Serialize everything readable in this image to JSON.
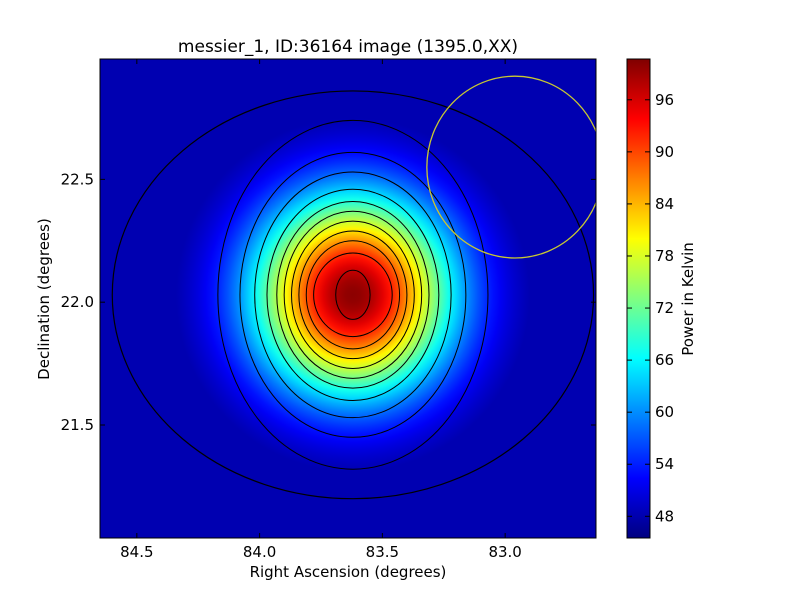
{
  "chart_data": {
    "type": "heatmap",
    "title": "messier_1, ID:36164 image (1395.0,XX)",
    "xlabel": "Right Ascension (degrees)",
    "ylabel": "Declination (degrees)",
    "colorbar_label": "Power in Kelvin",
    "colormap": "jet",
    "x_axis_inverted": true,
    "xlim": [
      84.65,
      82.63
    ],
    "ylim": [
      21.04,
      22.99
    ],
    "x_ticks": [
      {
        "value": 84.5,
        "label": "84.5"
      },
      {
        "value": 84.0,
        "label": "84.0"
      },
      {
        "value": 83.5,
        "label": "83.5"
      },
      {
        "value": 83.0,
        "label": "83.0"
      }
    ],
    "y_ticks": [
      {
        "value": 22.5,
        "label": "22.5"
      },
      {
        "value": 22.0,
        "label": "22.0"
      },
      {
        "value": 21.5,
        "label": "21.5"
      }
    ],
    "colorbar_range": [
      45.5,
      100.7
    ],
    "colorbar_ticks": [
      {
        "value": 48,
        "label": "48"
      },
      {
        "value": 54,
        "label": "54"
      },
      {
        "value": 60,
        "label": "60"
      },
      {
        "value": 66,
        "label": "66"
      },
      {
        "value": 72,
        "label": "72"
      },
      {
        "value": 78,
        "label": "78"
      },
      {
        "value": 84,
        "label": "84"
      },
      {
        "value": 90,
        "label": "90"
      },
      {
        "value": 96,
        "label": "96"
      }
    ],
    "peak": {
      "ra": 83.62,
      "dec": 22.03,
      "value": 100.0
    },
    "background_level": 46.0,
    "contour_semi_axes_deg": [
      {
        "ra": 0.07,
        "dec": 0.1
      },
      {
        "ra": 0.16,
        "dec": 0.17
      },
      {
        "ra": 0.19,
        "dec": 0.22
      },
      {
        "ra": 0.22,
        "dec": 0.26
      },
      {
        "ra": 0.25,
        "dec": 0.3
      },
      {
        "ra": 0.28,
        "dec": 0.34
      },
      {
        "ra": 0.31,
        "dec": 0.38
      },
      {
        "ra": 0.35,
        "dec": 0.43
      },
      {
        "ra": 0.4,
        "dec": 0.5
      },
      {
        "ra": 0.46,
        "dec": 0.58
      },
      {
        "ra": 0.55,
        "dec": 0.71
      },
      {
        "ra": 0.98,
        "dec": 0.83
      }
    ],
    "beam_circle": {
      "ra": 82.96,
      "dec": 22.55,
      "radius_deg": 0.37,
      "color": "#c8c832"
    }
  }
}
